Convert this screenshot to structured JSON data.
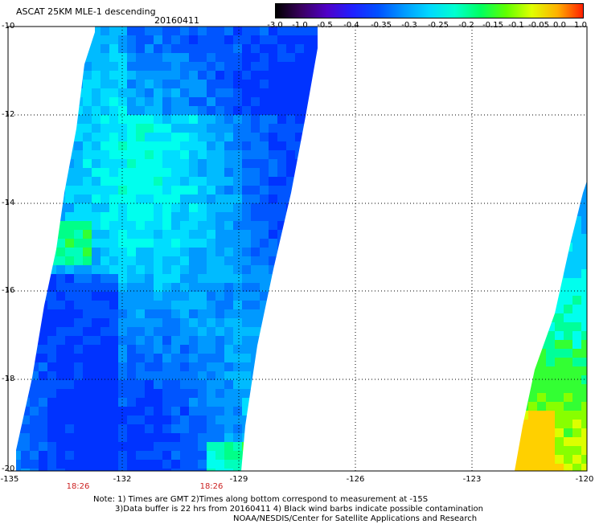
{
  "header": {
    "title": "ASCAT 25KM MLE-1 descending",
    "date": "20160411"
  },
  "colorbar": {
    "labels": [
      "-3.0",
      "-1.0",
      "-0.5",
      "-0.4",
      "-0.35",
      "-0.3",
      "-0.25",
      "-0.2",
      "-0.15",
      "-0.1",
      "-0.05",
      "0.0",
      "1.0"
    ],
    "colors": [
      "#000000",
      "#3a0060",
      "#4f00c8",
      "#2020ff",
      "#0050ff",
      "#0099ff",
      "#00d8ff",
      "#00ffd0",
      "#00ff60",
      "#60ff00",
      "#e0ff00",
      "#ffb000",
      "#ff2000"
    ]
  },
  "axes": {
    "lat_labels": [
      "-10",
      "-12",
      "-14",
      "-16",
      "-18",
      "-20"
    ],
    "lon_labels": [
      "-135",
      "-132",
      "-129",
      "-126",
      "-123",
      "-120"
    ]
  },
  "times": [
    "18:26",
    "18:26"
  ],
  "notes": {
    "line1": "Note: 1) Times are GMT 2)Times along bottom correspond to measurement at -15S",
    "line2": "3)Data buffer is 22 hrs from 20160411 4) Black wind barbs indicate possible contamination",
    "line3": "NOAA/NESDIS/Center for Satellite Applications and Research"
  }
}
